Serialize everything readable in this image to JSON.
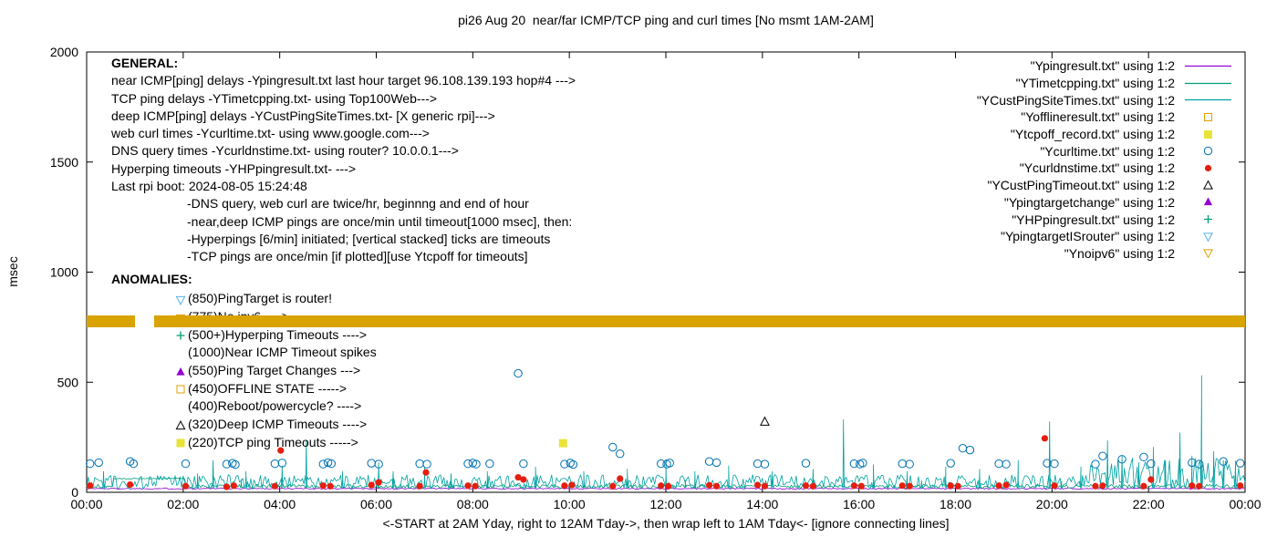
{
  "title": "pi26 Aug 20  near/far ICMP/TCP ping and curl times [No msmt 1AM-2AM]",
  "axes": {
    "ylabel": "msec",
    "xlabel": "<-START at 2AM Yday, right to 12AM Tday->, then wrap left to 1AM Tday<- [ignore connecting lines]",
    "ylim": [
      0,
      2000
    ],
    "yticks": [
      0,
      500,
      1000,
      1500,
      2000
    ],
    "xlim_hours": [
      0,
      24
    ],
    "xtick_labels": [
      "00:00",
      "02:00",
      "04:00",
      "06:00",
      "08:00",
      "10:00",
      "12:00",
      "14:00",
      "16:00",
      "18:00",
      "20:00",
      "22:00",
      "00:00"
    ],
    "grid": false,
    "legend_position": "top-right-inside"
  },
  "general": {
    "heading": "GENERAL:",
    "lines": [
      "near ICMP[ping] delays -Ypingresult.txt last hour target 96.108.139.193 hop#4 --->",
      "TCP ping delays -YTimetcpping.txt- using Top100Web--->",
      "deep ICMP[ping] delays -YCustPingSiteTimes.txt- [X generic rpi]--->",
      "web curl times -Ycurltime.txt- using www.google.com--->",
      "DNS query times -Ycurldnstime.txt- using router? 10.0.0.1--->",
      "Hyperping timeouts -YHPpingresult.txt- --->",
      "Last rpi boot: 2024-08-05 15:24:48"
    ],
    "indented_lines": [
      "-DNS query, web curl are twice/hr, beginnng and end of hour",
      "-near,deep ICMP pings are once/min until timeout[1000 msec], then:",
      "-Hyperpings [6/min] initiated; [vertical stacked] ticks are timeouts",
      "-TCP pings are once/min [if plotted][use Ytcpoff for timeouts]"
    ]
  },
  "anomalies": {
    "heading": "ANOMALIES:",
    "items": [
      {
        "marker": "triangle-down-open",
        "color": "#56b4e9",
        "label": "(850)PingTarget is router!",
        "obscured": false
      },
      {
        "marker": "triangle-down-open",
        "color": "#e69f00",
        "label": "(775)No ipv6 ---->",
        "obscured": true
      },
      {
        "marker": "plus",
        "color": "#009e73",
        "label": "(500+)Hyperping Timeouts ---->",
        "obscured": false
      },
      {
        "marker": null,
        "color": null,
        "label": "(1000)Near ICMP Timeout spikes",
        "obscured": false
      },
      {
        "marker": "triangle-filled",
        "color": "#9400d3",
        "label": "(550)Ping Target Changes --->",
        "obscured": false
      },
      {
        "marker": "square-open",
        "color": "#e69f00",
        "label": "(450)OFFLINE STATE ----->",
        "obscured": false
      },
      {
        "marker": null,
        "color": null,
        "label": "(400)Reboot/powercycle? ---->",
        "obscured": false
      },
      {
        "marker": "triangle-open",
        "color": "#000000",
        "label": "(320)Deep ICMP Timeouts ---->",
        "obscured": false
      },
      {
        "marker": "square-filled",
        "color": "#e8e337",
        "label": "(220)TCP ping Timeouts ----->",
        "obscured": false
      }
    ]
  },
  "legend": {
    "items": [
      {
        "label": "\"Ypingresult.txt\" using 1:2",
        "sample": "line",
        "color": "#9400d3"
      },
      {
        "label": "\"YTimetcpping.txt\" using 1:2",
        "sample": "line",
        "color": "#009e73"
      },
      {
        "label": "\"YCustPingSiteTimes.txt\" using 1:2",
        "sample": "line",
        "color": "#00a2a2"
      },
      {
        "label": "\"Yofflineresult.txt\" using 1:2",
        "sample": "square-open",
        "color": "#e69f00"
      },
      {
        "label": "\"Ytcpoff_record.txt\" using 1:2",
        "sample": "square-filled",
        "color": "#e8e337"
      },
      {
        "label": "\"Ycurltime.txt\" using 1:2",
        "sample": "circle-open",
        "color": "#0072b2"
      },
      {
        "label": "\"Ycurldnstime.txt\" using 1:2",
        "sample": "circle-filled",
        "color": "#e51e10"
      },
      {
        "label": "\"YCustPingTimeout.txt\" using 1:2",
        "sample": "triangle-open",
        "color": "#000000"
      },
      {
        "label": "\"Ypingtargetchange\" using 1:2",
        "sample": "triangle-filled",
        "color": "#9400d3"
      },
      {
        "label": "\"YHPpingresult.txt\" using 1:2",
        "sample": "plus",
        "color": "#009e73"
      },
      {
        "label": "\"YpingtargetISrouter\" using 1:2",
        "sample": "triangle-down-open",
        "color": "#56b4e9"
      },
      {
        "label": "\"Ynoipv6\" using 1:2",
        "sample": "triangle-down-open",
        "color": "#e69f00"
      }
    ]
  },
  "chart_data": {
    "type": "line",
    "title": "pi26 Aug 20  near/far ICMP/TCP ping and curl times [No msmt 1AM-2AM]",
    "xlabel": "<-START at 2AM Yday, right to 12AM Tday->, then wrap left to 1AM Tday<- [ignore connecting lines]",
    "ylabel": "msec",
    "ylim": [
      0,
      2000
    ],
    "x_hours": [
      0,
      24
    ],
    "noise_seed": 1337,
    "series": [
      {
        "name": "Ypingresult.txt",
        "style": "line",
        "color": "#9400d3",
        "base": 14,
        "noise": 6,
        "spikes": []
      },
      {
        "name": "YTimetcpping.txt",
        "style": "line",
        "color": "#009e73",
        "base": 18,
        "noise": 18,
        "plateau": {
          "t0": 0.55,
          "t1": 2.05,
          "y": 62
        },
        "spikes": [
          [
            3.2,
            58
          ],
          [
            8.1,
            52
          ],
          [
            12.4,
            55
          ],
          [
            17.3,
            52
          ],
          [
            20.2,
            50
          ]
        ]
      },
      {
        "name": "YCustPingSiteTimes.txt",
        "style": "line",
        "color": "#00a2a2",
        "base": 15,
        "noise": 65,
        "dense": {
          "t0": 20.8,
          "t1": 23.9,
          "noise": 140
        },
        "spikes": [
          [
            0.35,
            95
          ],
          [
            2.3,
            85
          ],
          [
            2.62,
            145
          ],
          [
            3.3,
            95
          ],
          [
            4.05,
            120
          ],
          [
            4.55,
            235
          ],
          [
            5.3,
            95
          ],
          [
            6.05,
            135
          ],
          [
            6.35,
            95
          ],
          [
            7.0,
            115
          ],
          [
            7.55,
            85
          ],
          [
            8.3,
            95
          ],
          [
            9.3,
            115
          ],
          [
            10.3,
            95
          ],
          [
            11.2,
            105
          ],
          [
            12.0,
            150
          ],
          [
            12.6,
            95
          ],
          [
            13.3,
            120
          ],
          [
            14.2,
            95
          ],
          [
            15.05,
            105
          ],
          [
            15.68,
            330
          ],
          [
            16.3,
            125
          ],
          [
            17.0,
            95
          ],
          [
            17.8,
            115
          ],
          [
            18.5,
            105
          ],
          [
            19.3,
            145
          ],
          [
            19.95,
            320
          ],
          [
            20.6,
            115
          ],
          [
            21.15,
            235
          ],
          [
            21.45,
            165
          ],
          [
            21.8,
            135
          ],
          [
            22.1,
            205
          ],
          [
            22.35,
            145
          ],
          [
            22.65,
            270
          ],
          [
            22.9,
            165
          ],
          [
            23.1,
            530
          ],
          [
            23.35,
            185
          ],
          [
            23.55,
            145
          ],
          [
            23.8,
            125
          ]
        ]
      },
      {
        "name": "Ycurltime.txt",
        "style": "points",
        "marker": "circle-open",
        "color": "#0072b2",
        "points": [
          [
            0.07,
            130
          ],
          [
            0.25,
            135
          ],
          [
            0.9,
            140
          ],
          [
            0.97,
            130
          ],
          [
            2.05,
            130
          ],
          [
            2.9,
            128
          ],
          [
            3.02,
            132
          ],
          [
            3.08,
            126
          ],
          [
            3.9,
            130
          ],
          [
            4.05,
            133
          ],
          [
            4.9,
            128
          ],
          [
            5.0,
            135
          ],
          [
            5.07,
            130
          ],
          [
            5.9,
            132
          ],
          [
            6.05,
            128
          ],
          [
            6.9,
            130
          ],
          [
            7.05,
            128
          ],
          [
            7.9,
            130
          ],
          [
            8.0,
            133
          ],
          [
            8.07,
            128
          ],
          [
            8.35,
            130
          ],
          [
            8.94,
            540
          ],
          [
            9.05,
            130
          ],
          [
            9.9,
            128
          ],
          [
            10.02,
            133
          ],
          [
            10.08,
            126
          ],
          [
            10.9,
            205
          ],
          [
            11.05,
            175
          ],
          [
            11.9,
            130
          ],
          [
            12.02,
            128
          ],
          [
            12.08,
            133
          ],
          [
            12.9,
            140
          ],
          [
            13.05,
            135
          ],
          [
            13.9,
            130
          ],
          [
            14.05,
            128
          ],
          [
            14.9,
            132
          ],
          [
            15.9,
            130
          ],
          [
            16.02,
            128
          ],
          [
            16.08,
            133
          ],
          [
            16.9,
            130
          ],
          [
            17.05,
            128
          ],
          [
            17.9,
            132
          ],
          [
            18.15,
            200
          ],
          [
            18.3,
            192
          ],
          [
            18.9,
            130
          ],
          [
            19.05,
            128
          ],
          [
            19.9,
            132
          ],
          [
            20.05,
            130
          ],
          [
            20.9,
            128
          ],
          [
            21.05,
            165
          ],
          [
            21.45,
            150
          ],
          [
            21.9,
            160
          ],
          [
            22.05,
            130
          ],
          [
            22.9,
            135
          ],
          [
            23.05,
            128
          ],
          [
            23.55,
            140
          ],
          [
            23.9,
            132
          ]
        ]
      },
      {
        "name": "Ycurldnstime.txt",
        "style": "points",
        "marker": "circle-filled",
        "color": "#e51e10",
        "points": [
          [
            0.07,
            30
          ],
          [
            0.9,
            35
          ],
          [
            2.05,
            28
          ],
          [
            2.9,
            25
          ],
          [
            3.05,
            30
          ],
          [
            3.9,
            28
          ],
          [
            4.02,
            190
          ],
          [
            4.9,
            30
          ],
          [
            5.05,
            28
          ],
          [
            5.9,
            33
          ],
          [
            6.05,
            45
          ],
          [
            6.9,
            28
          ],
          [
            7.03,
            90
          ],
          [
            7.9,
            30
          ],
          [
            8.05,
            28
          ],
          [
            8.94,
            68
          ],
          [
            9.05,
            58
          ],
          [
            9.9,
            30
          ],
          [
            10.05,
            33
          ],
          [
            10.9,
            28
          ],
          [
            11.05,
            62
          ],
          [
            11.9,
            30
          ],
          [
            12.05,
            28
          ],
          [
            12.9,
            32
          ],
          [
            13.05,
            28
          ],
          [
            13.9,
            33
          ],
          [
            14.05,
            28
          ],
          [
            14.9,
            30
          ],
          [
            15.05,
            28
          ],
          [
            15.9,
            30
          ],
          [
            16.05,
            28
          ],
          [
            16.9,
            30
          ],
          [
            17.05,
            28
          ],
          [
            17.9,
            30
          ],
          [
            18.05,
            28
          ],
          [
            18.9,
            30
          ],
          [
            19.05,
            33
          ],
          [
            19.85,
            245
          ],
          [
            20.05,
            30
          ],
          [
            20.9,
            28
          ],
          [
            21.05,
            30
          ],
          [
            21.9,
            28
          ],
          [
            22.05,
            58
          ],
          [
            22.9,
            30
          ],
          [
            23.05,
            28
          ],
          [
            23.9,
            30
          ]
        ]
      },
      {
        "name": "Ytcpoff_record.txt",
        "style": "points",
        "marker": "square-filled",
        "color": "#e8e337",
        "points": [
          [
            9.87,
            223
          ]
        ]
      },
      {
        "name": "YCustPingTimeout.txt",
        "style": "points",
        "marker": "triangle-open",
        "color": "#000000",
        "points": [
          [
            14.05,
            320
          ]
        ]
      },
      {
        "name": "Ynoipv6",
        "style": "band",
        "color": "#d9a300",
        "y": 775,
        "band_half_msec": 27,
        "gaps": [
          [
            1.0,
            1.4
          ]
        ]
      }
    ]
  }
}
